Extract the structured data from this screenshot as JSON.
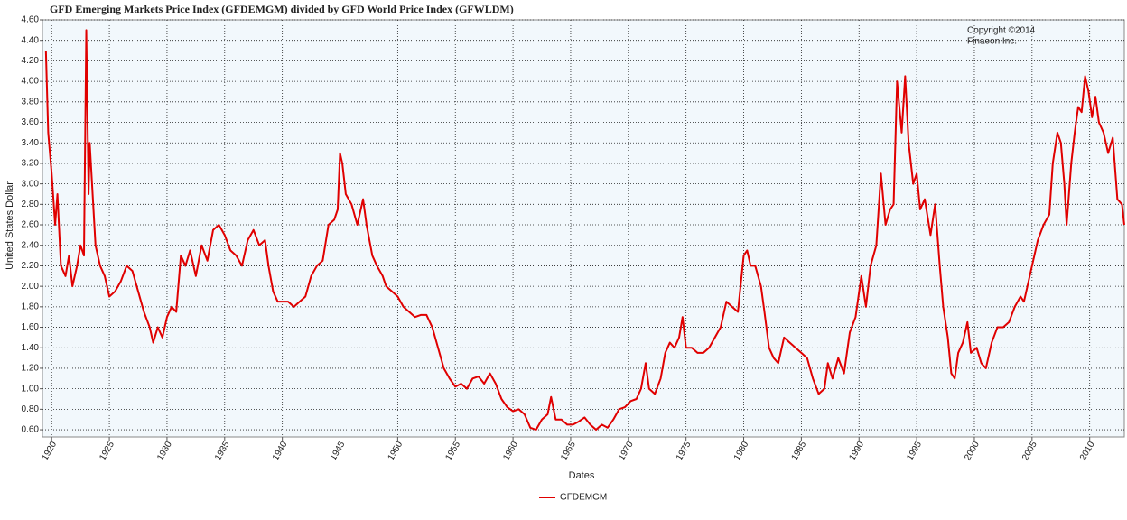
{
  "chart_data": {
    "type": "line",
    "title": "GFD Emerging Markets Price Index (GFDEMGM) divided by GFD World Price Index (GFWLDM)",
    "annotations": [
      "Copyright ©2014",
      "Finaeon Inc."
    ],
    "xlabel": "Dates",
    "ylabel": "United States Dollar",
    "xlim": [
      1919.2,
      2013
    ],
    "ylim": [
      0.53,
      4.6
    ],
    "xticks": [
      1920,
      1925,
      1930,
      1935,
      1940,
      1945,
      1950,
      1955,
      1960,
      1965,
      1970,
      1975,
      1980,
      1985,
      1990,
      1995,
      2000,
      2005,
      2010
    ],
    "yticks": [
      {
        "value": 0.6,
        "label": "0.60"
      },
      {
        "value": 0.8,
        "label": "0.80"
      },
      {
        "value": 1.0,
        "label": "1.00"
      },
      {
        "value": 1.2,
        "label": "1.20"
      },
      {
        "value": 1.4,
        "label": "1.40"
      },
      {
        "value": 1.6,
        "label": "1.60"
      },
      {
        "value": 1.8,
        "label": "1.80"
      },
      {
        "value": 2.0,
        "label": "2.00"
      },
      {
        "value": 2.2,
        "label": "2.20"
      },
      {
        "value": 2.4,
        "label": "2.40"
      },
      {
        "value": 2.6,
        "label": "2.60"
      },
      {
        "value": 2.8,
        "label": "2.80"
      },
      {
        "value": 3.0,
        "label": "3.00"
      },
      {
        "value": 3.2,
        "label": "3.20"
      },
      {
        "value": 3.4,
        "label": "3.40"
      },
      {
        "value": 3.6,
        "label": "3.60"
      },
      {
        "value": 3.8,
        "label": "3.80"
      },
      {
        "value": 4.0,
        "label": "4.00"
      },
      {
        "value": 4.2,
        "label": "4.20"
      },
      {
        "value": 4.4,
        "label": "4.40"
      },
      {
        "value": 4.6,
        "label": "4.60"
      }
    ],
    "grid": true,
    "legend": "bottom",
    "x": [
      1919.5,
      1919.7,
      1920,
      1920.3,
      1920.5,
      1920.8,
      1921.2,
      1921.5,
      1921.8,
      1922.2,
      1922.5,
      1922.8,
      1923,
      1923.2,
      1923.3,
      1923.5,
      1923.8,
      1924.2,
      1924.6,
      1925,
      1925.5,
      1926,
      1926.5,
      1927,
      1927.5,
      1928,
      1928.5,
      1928.8,
      1929.2,
      1929.6,
      1930,
      1930.4,
      1930.8,
      1931.2,
      1931.6,
      1932,
      1932.5,
      1933,
      1933.5,
      1934,
      1934.5,
      1935,
      1935.5,
      1936,
      1936.5,
      1937,
      1937.5,
      1938,
      1938.5,
      1938.8,
      1939.2,
      1939.6,
      1940,
      1940.5,
      1941,
      1941.5,
      1942,
      1942.5,
      1943,
      1943.5,
      1944,
      1944.5,
      1944.8,
      1945,
      1945.2,
      1945.5,
      1946,
      1946.5,
      1947,
      1947.3,
      1947.8,
      1948.2,
      1948.7,
      1949,
      1949.5,
      1950,
      1950.5,
      1951,
      1951.5,
      1952,
      1952.5,
      1953,
      1953.5,
      1954,
      1954.5,
      1955,
      1955.5,
      1956,
      1956.5,
      1957,
      1957.5,
      1958,
      1958.5,
      1959,
      1959.5,
      1960,
      1960.5,
      1961,
      1961.5,
      1962,
      1962.5,
      1963,
      1963.3,
      1963.7,
      1964.2,
      1964.7,
      1965.2,
      1965.7,
      1966.2,
      1966.7,
      1967.2,
      1967.7,
      1968.2,
      1968.7,
      1969.2,
      1969.7,
      1970.2,
      1970.7,
      1971.1,
      1971.5,
      1971.8,
      1972.3,
      1972.8,
      1973.2,
      1973.6,
      1974,
      1974.4,
      1974.7,
      1975,
      1975.5,
      1976,
      1976.5,
      1977,
      1977.5,
      1978,
      1978.5,
      1979,
      1979.5,
      1980,
      1980.3,
      1980.6,
      1981,
      1981.5,
      1981.8,
      1982.2,
      1982.6,
      1983,
      1983.5,
      1984,
      1984.5,
      1985,
      1985.5,
      1986,
      1986.5,
      1987,
      1987.3,
      1987.7,
      1988.2,
      1988.7,
      1989.2,
      1989.7,
      1990.2,
      1990.6,
      1991,
      1991.5,
      1991.9,
      1992.3,
      1992.7,
      1993,
      1993.3,
      1993.7,
      1994,
      1994.3,
      1994.7,
      1995,
      1995.3,
      1995.7,
      1996.2,
      1996.6,
      1997,
      1997.3,
      1997.7,
      1998,
      1998.3,
      1998.6,
      1999,
      1999.4,
      1999.7,
      2000.2,
      2000.6,
      2001,
      2001.5,
      2002,
      2002.5,
      2003,
      2003.5,
      2004,
      2004.3,
      2004.7,
      2005,
      2005.5,
      2006,
      2006.5,
      2006.8,
      2007.2,
      2007.5,
      2007.8,
      2008,
      2008.4,
      2008.7,
      2009,
      2009.3,
      2009.6,
      2009.9,
      2010.2,
      2010.5,
      2010.8,
      2011.2,
      2011.6,
      2012,
      2012.4,
      2012.8,
      2013
    ],
    "series": [
      {
        "name": "GFDEMGM",
        "color": "#e00000",
        "values": [
          4.3,
          3.5,
          3.1,
          2.6,
          2.9,
          2.2,
          2.1,
          2.3,
          2.0,
          2.2,
          2.4,
          2.3,
          4.5,
          2.9,
          3.4,
          3.0,
          2.4,
          2.2,
          2.1,
          1.9,
          1.95,
          2.05,
          2.2,
          2.15,
          1.95,
          1.75,
          1.6,
          1.45,
          1.6,
          1.5,
          1.7,
          1.8,
          1.75,
          2.3,
          2.2,
          2.35,
          2.1,
          2.4,
          2.25,
          2.55,
          2.6,
          2.5,
          2.35,
          2.3,
          2.2,
          2.45,
          2.55,
          2.4,
          2.45,
          2.2,
          1.95,
          1.85,
          1.85,
          1.85,
          1.8,
          1.85,
          1.9,
          2.1,
          2.2,
          2.25,
          2.6,
          2.65,
          2.75,
          3.3,
          3.2,
          2.9,
          2.8,
          2.6,
          2.85,
          2.6,
          2.3,
          2.2,
          2.1,
          2.0,
          1.95,
          1.9,
          1.8,
          1.75,
          1.7,
          1.72,
          1.72,
          1.6,
          1.4,
          1.2,
          1.1,
          1.02,
          1.05,
          1.0,
          1.1,
          1.12,
          1.05,
          1.15,
          1.05,
          0.9,
          0.82,
          0.78,
          0.8,
          0.75,
          0.62,
          0.6,
          0.7,
          0.75,
          0.92,
          0.7,
          0.7,
          0.65,
          0.65,
          0.68,
          0.72,
          0.65,
          0.6,
          0.65,
          0.62,
          0.7,
          0.8,
          0.82,
          0.88,
          0.9,
          1.0,
          1.25,
          1.0,
          0.95,
          1.1,
          1.35,
          1.45,
          1.4,
          1.5,
          1.7,
          1.4,
          1.4,
          1.35,
          1.35,
          1.4,
          1.5,
          1.6,
          1.85,
          1.8,
          1.75,
          2.3,
          2.35,
          2.2,
          2.2,
          2.0,
          1.75,
          1.4,
          1.3,
          1.25,
          1.5,
          1.45,
          1.4,
          1.35,
          1.3,
          1.1,
          0.95,
          1.0,
          1.25,
          1.1,
          1.3,
          1.15,
          1.55,
          1.7,
          2.1,
          1.8,
          2.2,
          2.4,
          3.1,
          2.6,
          2.75,
          2.8,
          4.0,
          3.5,
          4.05,
          3.4,
          3.0,
          3.1,
          2.75,
          2.85,
          2.5,
          2.8,
          2.2,
          1.8,
          1.5,
          1.15,
          1.1,
          1.35,
          1.45,
          1.65,
          1.35,
          1.4,
          1.25,
          1.2,
          1.45,
          1.6,
          1.6,
          1.65,
          1.8,
          1.9,
          1.85,
          2.05,
          2.2,
          2.45,
          2.6,
          2.7,
          3.2,
          3.5,
          3.4,
          3.0,
          2.6,
          3.2,
          3.5,
          3.75,
          3.7,
          4.05,
          3.9,
          3.65,
          3.85,
          3.6,
          3.5,
          3.3,
          3.45,
          2.85,
          2.8,
          2.6
        ]
      }
    ]
  }
}
